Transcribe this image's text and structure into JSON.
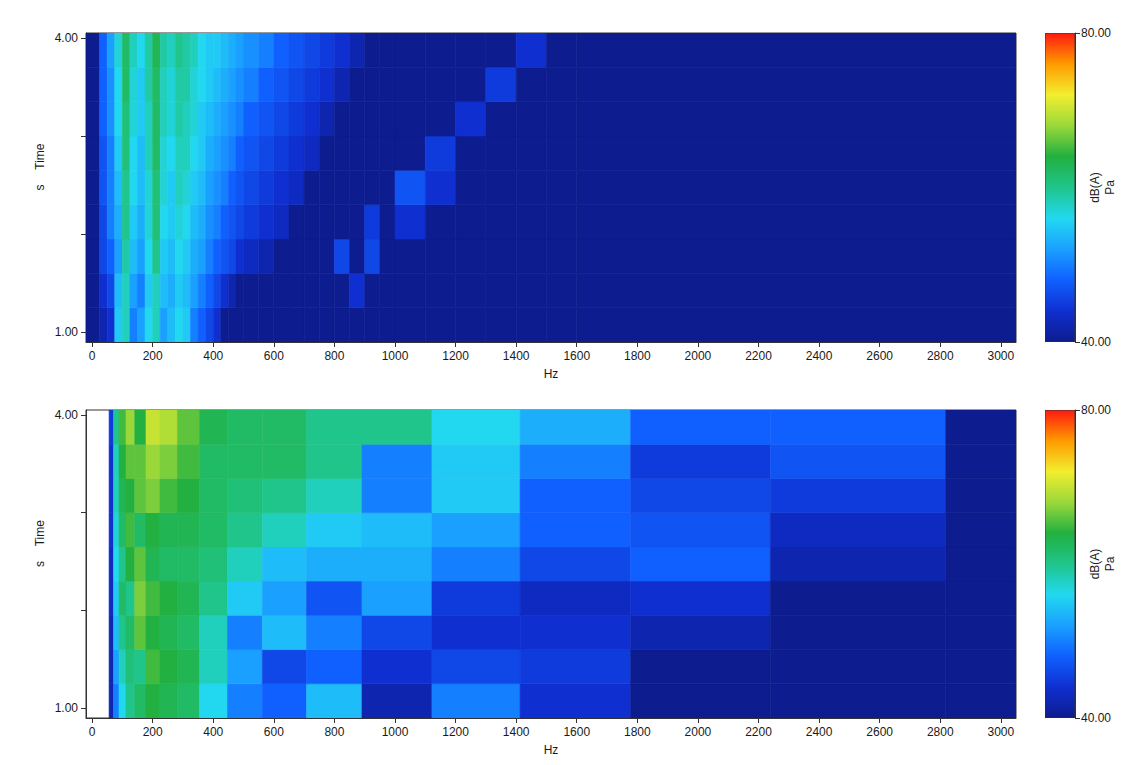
{
  "chart_data": [
    {
      "type": "heatmap",
      "xlabel": "Hz",
      "ylabel": "Time",
      "ylabel_unit": "s",
      "xlim": [
        -20,
        3050
      ],
      "xticks": [
        0,
        200,
        400,
        600,
        800,
        1000,
        1200,
        1400,
        1600,
        1800,
        2000,
        2200,
        2400,
        2600,
        2800,
        3000
      ],
      "ylim": [
        0.9,
        4.05
      ],
      "yticks": [
        {
          "value": 1,
          "label": "1.00"
        },
        {
          "value": 2,
          "label": null
        },
        {
          "value": 3,
          "label": null
        },
        {
          "value": 4,
          "label": "4.00"
        }
      ],
      "grid": false,
      "x_edges": [
        -20,
        25,
        50,
        75,
        100,
        125,
        150,
        175,
        200,
        225,
        250,
        275,
        300,
        325,
        350,
        375,
        400,
        425,
        450,
        475,
        500,
        550,
        600,
        650,
        700,
        750,
        800,
        850,
        900,
        950,
        1000,
        1100,
        1200,
        1300,
        1400,
        1500,
        1600,
        3050
      ],
      "y_edges": [
        0.9,
        1.25,
        1.6,
        1.95,
        2.3,
        2.65,
        3.0,
        3.35,
        3.7,
        4.05
      ],
      "cells": [
        [
          40,
          42,
          44,
          55,
          58,
          50,
          52,
          56,
          58,
          52,
          54,
          56,
          55,
          50,
          48,
          46,
          44,
          40,
          40,
          40,
          40,
          40,
          40,
          40,
          40,
          40,
          40,
          40,
          40,
          40,
          40,
          40,
          40,
          40,
          40,
          40,
          40
        ],
        [
          40,
          44,
          46,
          54,
          58,
          52,
          50,
          55,
          58,
          54,
          53,
          55,
          54,
          52,
          50,
          48,
          46,
          44,
          42,
          40,
          40,
          40,
          40,
          40,
          40,
          40,
          40,
          44,
          40,
          40,
          40,
          40,
          40,
          40,
          40,
          40,
          40
        ],
        [
          40,
          46,
          48,
          52,
          59,
          54,
          52,
          56,
          60,
          55,
          54,
          56,
          55,
          53,
          52,
          50,
          48,
          47,
          46,
          44,
          43,
          42,
          40,
          40,
          40,
          40,
          46,
          40,
          46,
          40,
          40,
          40,
          40,
          40,
          40,
          40,
          40
        ],
        [
          40,
          46,
          50,
          53,
          60,
          55,
          53,
          57,
          61,
          56,
          55,
          57,
          56,
          54,
          53,
          51,
          50,
          48,
          47,
          46,
          45,
          44,
          43,
          40,
          40,
          40,
          40,
          40,
          45,
          40,
          44,
          40,
          40,
          40,
          40,
          40,
          40
        ],
        [
          40,
          47,
          50,
          54,
          60,
          56,
          54,
          57,
          61,
          57,
          55,
          58,
          57,
          55,
          54,
          52,
          51,
          50,
          48,
          47,
          46,
          45,
          44,
          43,
          40,
          40,
          40,
          40,
          40,
          40,
          47,
          44,
          40,
          40,
          40,
          40,
          40
        ],
        [
          40,
          47,
          50,
          55,
          61,
          56,
          54,
          58,
          62,
          57,
          56,
          58,
          58,
          56,
          55,
          53,
          52,
          51,
          50,
          48,
          47,
          46,
          45,
          44,
          43,
          40,
          40,
          40,
          40,
          40,
          40,
          45,
          40,
          40,
          40,
          40,
          40
        ],
        [
          40,
          48,
          51,
          56,
          61,
          57,
          55,
          58,
          62,
          58,
          57,
          59,
          58,
          57,
          55,
          54,
          53,
          52,
          51,
          50,
          48,
          47,
          46,
          45,
          44,
          42,
          40,
          40,
          40,
          40,
          40,
          40,
          44,
          40,
          40,
          40,
          40
        ],
        [
          40,
          48,
          51,
          56,
          62,
          57,
          55,
          59,
          62,
          58,
          57,
          59,
          59,
          57,
          56,
          55,
          54,
          53,
          52,
          51,
          50,
          48,
          47,
          46,
          45,
          44,
          42,
          40,
          40,
          40,
          40,
          40,
          40,
          45,
          40,
          40,
          40
        ],
        [
          40,
          48,
          52,
          57,
          62,
          58,
          56,
          59,
          63,
          59,
          58,
          60,
          59,
          58,
          56,
          55,
          55,
          54,
          53,
          52,
          51,
          50,
          48,
          47,
          46,
          45,
          44,
          42,
          40,
          40,
          40,
          40,
          40,
          40,
          44,
          40,
          40
        ]
      ],
      "colorbar": {
        "range": [
          40,
          80
        ],
        "ticks": [
          {
            "value": 40,
            "label": "40.00"
          },
          {
            "value": 80,
            "label": "80.00"
          }
        ],
        "label": "dB(A)",
        "unit": "Pa"
      }
    },
    {
      "type": "heatmap",
      "xlabel": "Hz",
      "ylabel": "Time",
      "ylabel_unit": "s",
      "xlim": [
        -20,
        3050
      ],
      "xticks": [
        0,
        200,
        400,
        600,
        800,
        1000,
        1200,
        1400,
        1600,
        1800,
        2000,
        2200,
        2400,
        2600,
        2800,
        3000
      ],
      "ylim": [
        0.9,
        4.05
      ],
      "yticks": [
        {
          "value": 1,
          "label": "1.00"
        },
        {
          "value": 2,
          "label": null
        },
        {
          "value": 3,
          "label": null
        },
        {
          "value": 4,
          "label": "4.00"
        }
      ],
      "grid": false,
      "x_edges": [
        56.2,
        70.8,
        89.1,
        112,
        141,
        178,
        224,
        282,
        355,
        447,
        562,
        708,
        891,
        1122,
        1413,
        1778,
        2239,
        2818,
        3548
      ],
      "y_edges": [
        0.9,
        1.25,
        1.6,
        1.95,
        2.3,
        2.65,
        3.0,
        3.35,
        3.7,
        4.05
      ],
      "cells": [
        [
          42,
          50,
          56,
          60,
          62,
          64,
          63,
          62,
          56,
          50,
          48,
          54,
          42,
          50,
          44,
          40,
          40,
          40
        ],
        [
          42,
          52,
          58,
          61,
          60,
          65,
          64,
          63,
          58,
          52,
          46,
          48,
          44,
          46,
          45,
          40,
          40,
          40
        ],
        [
          42,
          54,
          60,
          62,
          66,
          64,
          63,
          62,
          58,
          50,
          54,
          50,
          46,
          44,
          44,
          42,
          40,
          40
        ],
        [
          43,
          55,
          62,
          60,
          67,
          65,
          64,
          63,
          60,
          55,
          52,
          47,
          52,
          45,
          43,
          44,
          40,
          40
        ],
        [
          43,
          56,
          60,
          64,
          66,
          63,
          62,
          62,
          61,
          58,
          54,
          53,
          53,
          50,
          46,
          48,
          42,
          40
        ],
        [
          44,
          57,
          62,
          65,
          62,
          64,
          63,
          63,
          62,
          60,
          58,
          55,
          54,
          52,
          48,
          47,
          43,
          40
        ],
        [
          44,
          58,
          63,
          64,
          66,
          67,
          65,
          64,
          62,
          61,
          60,
          58,
          50,
          55,
          48,
          46,
          45,
          40
        ],
        [
          44,
          58,
          64,
          66,
          66,
          68,
          67,
          65,
          62,
          62,
          62,
          60,
          50,
          55,
          50,
          45,
          47,
          40
        ],
        [
          45,
          60,
          65,
          68,
          64,
          70,
          69,
          66,
          63,
          62,
          62,
          60,
          60,
          56,
          53,
          48,
          48,
          40
        ]
      ],
      "colorbar": {
        "range": [
          40,
          80
        ],
        "ticks": [
          {
            "value": 40,
            "label": "40.00"
          },
          {
            "value": 80,
            "label": "80.00"
          }
        ],
        "label": "dB(A)",
        "unit": "Pa"
      }
    }
  ]
}
